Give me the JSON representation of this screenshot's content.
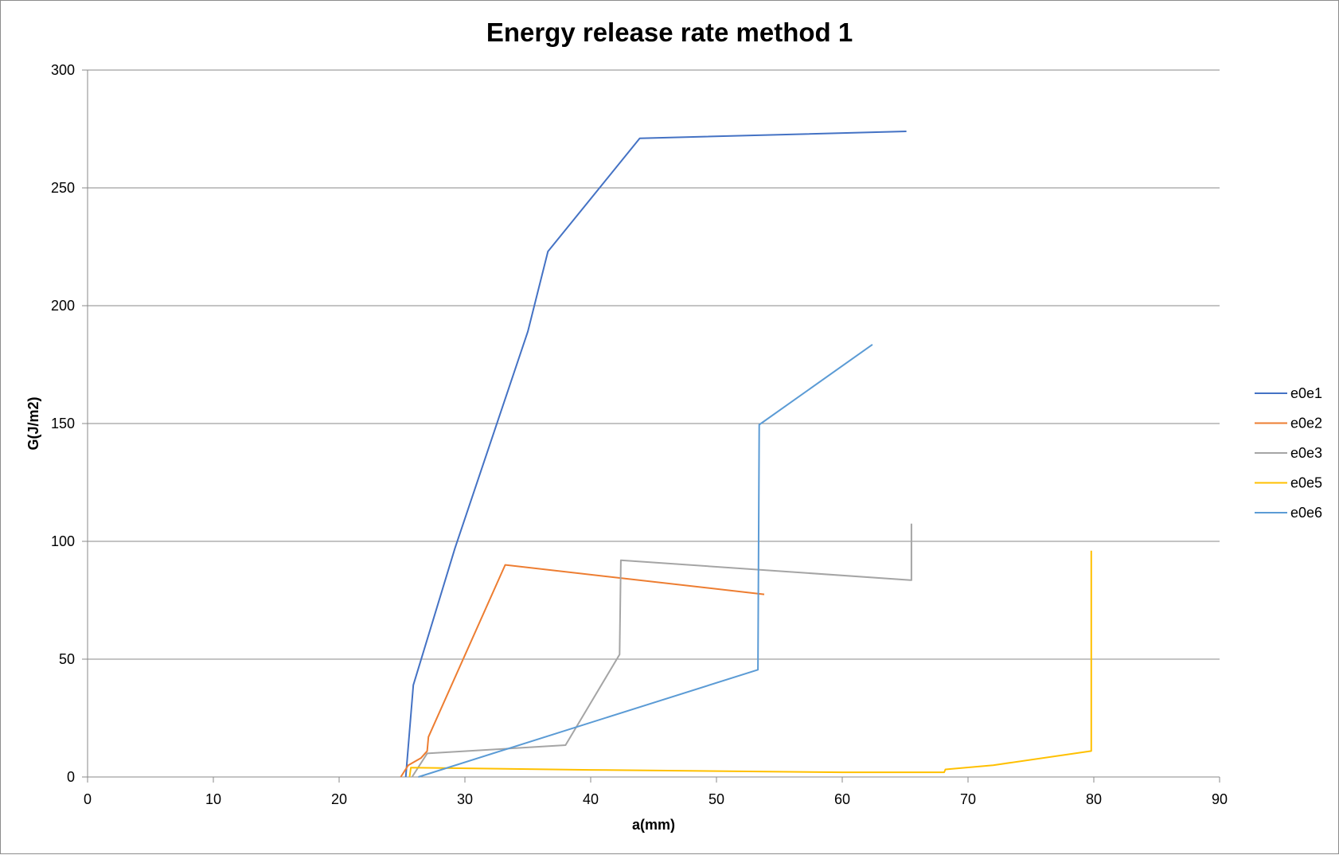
{
  "chart_data": {
    "type": "line",
    "title": "Energy release rate method 1",
    "xlabel": "a(mm)",
    "ylabel": "G(J/m2)",
    "xlim": [
      0,
      90
    ],
    "ylim": [
      0,
      300
    ],
    "xticks": [
      0,
      10,
      20,
      30,
      40,
      50,
      60,
      70,
      80,
      90
    ],
    "yticks": [
      0,
      50,
      100,
      150,
      200,
      250,
      300
    ],
    "grid": "horizontal major",
    "legend": "right",
    "series": [
      {
        "name": "e0e1",
        "color": "#4472c4",
        "points": [
          [
            25.3,
            0
          ],
          [
            25.9,
            39
          ],
          [
            29.2,
            97
          ],
          [
            35,
            189
          ],
          [
            36.6,
            223
          ],
          [
            43.9,
            271
          ],
          [
            65.1,
            274
          ]
        ]
      },
      {
        "name": "e0e2",
        "color": "#ed7d31",
        "points": [
          [
            24.9,
            0
          ],
          [
            25.5,
            5
          ],
          [
            26.5,
            8
          ],
          [
            27,
            11
          ],
          [
            27.1,
            17
          ],
          [
            33.2,
            90
          ],
          [
            53.8,
            77.5
          ]
        ]
      },
      {
        "name": "e0e3",
        "color": "#a5a5a5",
        "points": [
          [
            25.8,
            0
          ],
          [
            27,
            10
          ],
          [
            38,
            13.5
          ],
          [
            42.3,
            52
          ],
          [
            42.4,
            92
          ],
          [
            65.5,
            83.5
          ],
          [
            65.5,
            107.5
          ]
        ]
      },
      {
        "name": "e0e5",
        "color": "#ffc000",
        "points": [
          [
            25.6,
            0
          ],
          [
            25.7,
            4
          ],
          [
            40,
            3
          ],
          [
            60,
            2
          ],
          [
            68.1,
            2
          ],
          [
            68.2,
            3.2
          ],
          [
            72,
            5
          ],
          [
            79.8,
            11
          ],
          [
            79.8,
            96
          ]
        ]
      },
      {
        "name": "e0e6",
        "color": "#5b9bd5",
        "points": [
          [
            26.3,
            0
          ],
          [
            53.3,
            45.5
          ],
          [
            53.4,
            149.5
          ],
          [
            62.4,
            183.5
          ]
        ]
      }
    ]
  }
}
